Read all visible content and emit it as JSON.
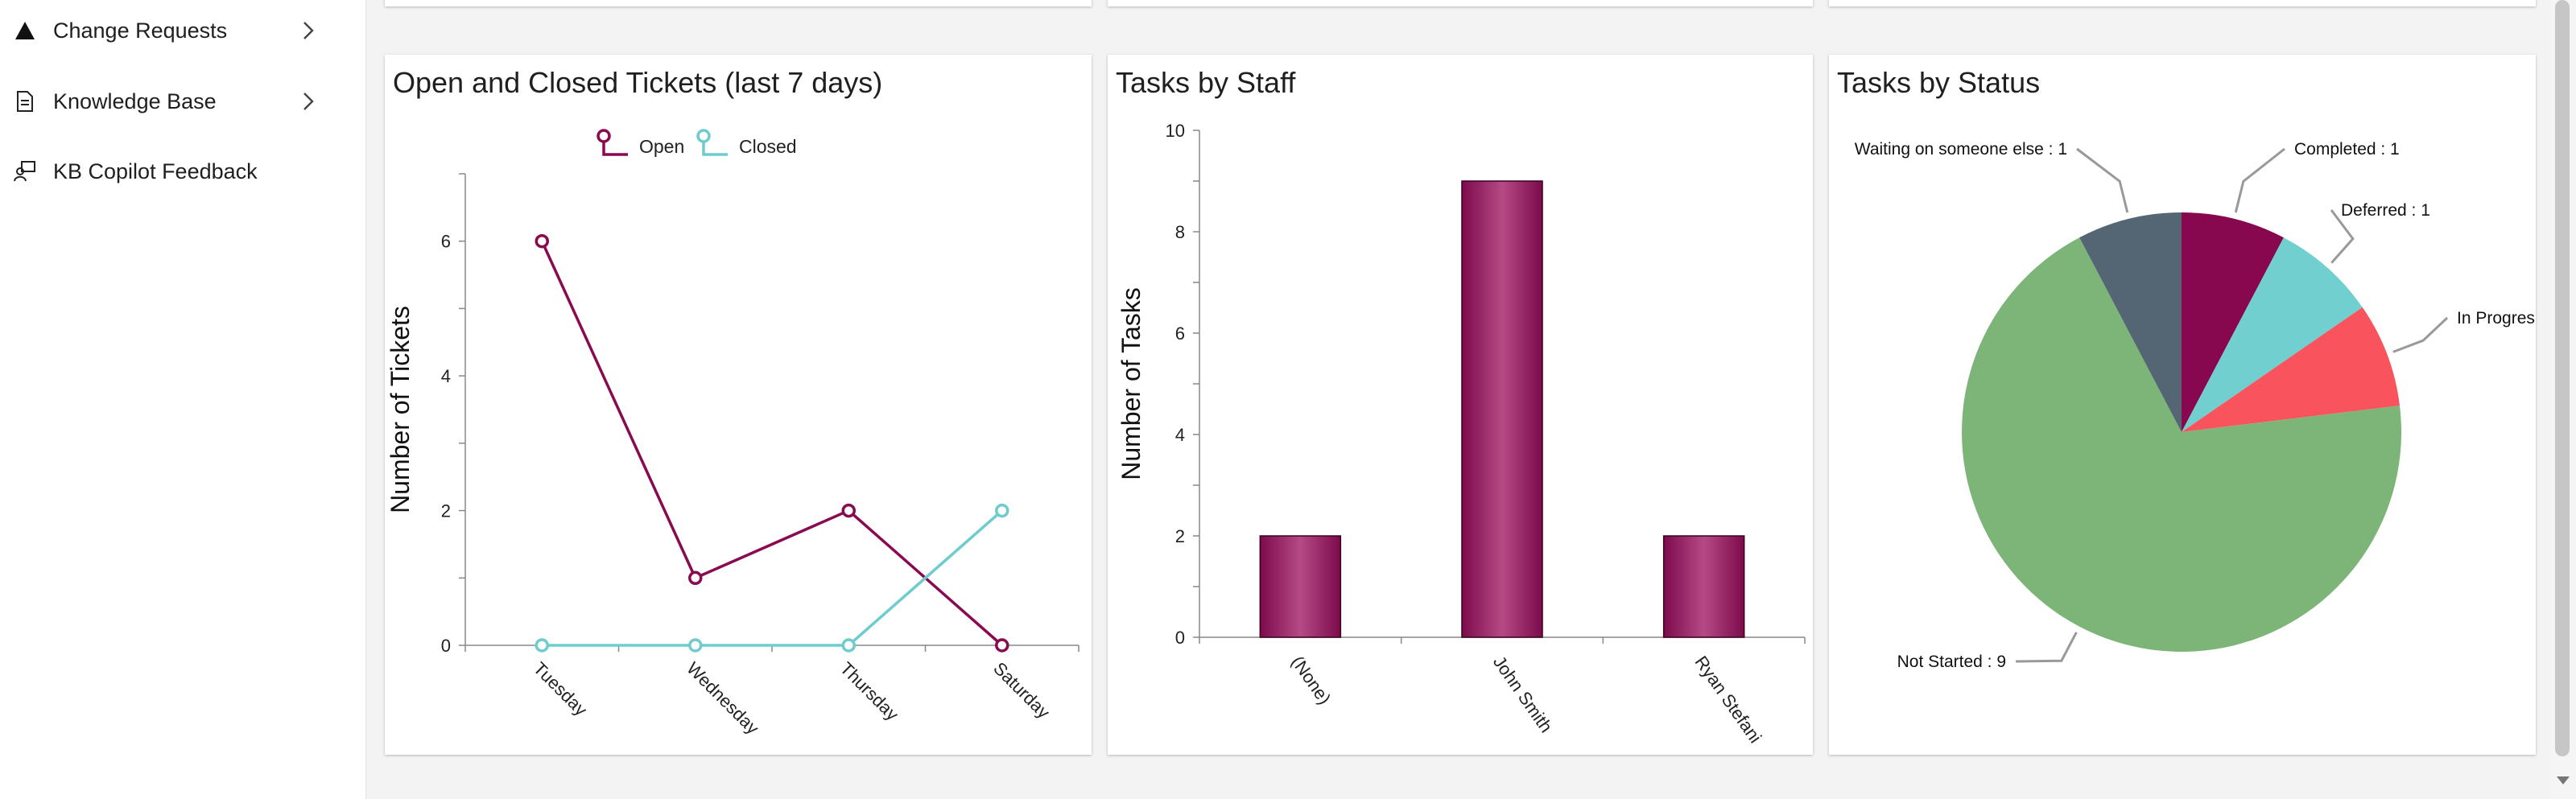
{
  "sidebar": {
    "items": [
      {
        "label": "Change Requests",
        "icon": "warning-triangle-icon"
      },
      {
        "label": "Knowledge Base",
        "icon": "document-icon"
      },
      {
        "label": "KB Copilot Feedback",
        "icon": "feedback-person-icon"
      }
    ]
  },
  "cards": {
    "tickets": {
      "title": "Open and Closed Tickets (last 7 days)"
    },
    "staff": {
      "title": "Tasks by Staff"
    },
    "status": {
      "title": "Tasks by Status"
    }
  },
  "chart_data": [
    {
      "type": "line",
      "title": "Open and Closed Tickets (last 7 days)",
      "x": [
        "Tuesday",
        "Wednesday",
        "Thursday",
        "Saturday"
      ],
      "series": [
        {
          "name": "Open",
          "values": [
            6,
            1,
            2,
            0
          ],
          "color": "#8a0a52"
        },
        {
          "name": "Closed",
          "values": [
            0,
            0,
            0,
            2
          ],
          "color": "#6ecdcc"
        }
      ],
      "xlabel": "",
      "ylabel": "Number of Tickets",
      "ylim": [
        0,
        7
      ],
      "yticks": [
        0,
        2,
        4,
        6
      ],
      "legend": "top-center",
      "grid": false
    },
    {
      "type": "bar",
      "title": "Tasks by Staff",
      "categories": [
        "(None)",
        "John Smith",
        "Ryan Stefani"
      ],
      "values": [
        2,
        9,
        2
      ],
      "xlabel": "",
      "ylabel": "Number of Tasks",
      "ylim": [
        0,
        10
      ],
      "yticks": [
        0,
        2,
        4,
        6,
        8,
        10
      ],
      "color": "#8a0a52",
      "grid": false
    },
    {
      "type": "pie",
      "title": "Tasks by Status",
      "slices": [
        {
          "label": "Completed",
          "value": 1,
          "color": "#87084f"
        },
        {
          "label": "Deferred",
          "value": 1,
          "color": "#72cfcf"
        },
        {
          "label": "In Progress",
          "value": 1,
          "color": "#f9545d"
        },
        {
          "label": "Not Started",
          "value": 9,
          "color": "#7db579"
        },
        {
          "label": "Waiting on someone else",
          "value": 1,
          "color": "#546574"
        }
      ],
      "slice_labels": [
        "Completed : 1",
        "Deferred : 1",
        "In Progres",
        "Not Started : 9",
        "Waiting on someone else : 1"
      ]
    }
  ]
}
